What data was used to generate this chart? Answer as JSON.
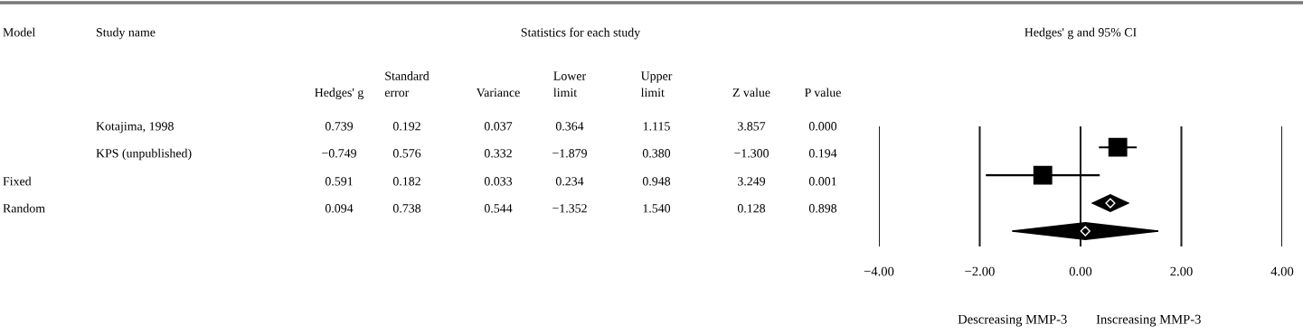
{
  "chart_data": [
    {
      "type": "other",
      "title": "Statistics for each study",
      "categories": [
        "Model",
        "Study name",
        "Hedges' g",
        "Standard\nerror",
        "Variance",
        "Lower\nlimit",
        "Upper\nlimit",
        "Z value",
        "P value"
      ],
      "cell_labels": [
        [
          null,
          "Kotajima, 1998",
          "0.739",
          "0.192",
          "0.037",
          "0.364",
          "1.115",
          "3.857",
          "0.000"
        ],
        [
          null,
          "KPS (unpublished)",
          "−0.749",
          "0.576",
          "0.332",
          "−1.879",
          "0.380",
          "−1.300",
          "0.194"
        ],
        [
          "Fixed",
          null,
          "0.591",
          "0.182",
          "0.033",
          "0.234",
          "0.948",
          "3.249",
          "0.001"
        ],
        [
          "Random",
          null,
          "0.094",
          "0.738",
          "0.544",
          "−1.352",
          "1.540",
          "0.128",
          "0.898"
        ]
      ]
    },
    {
      "type": "scatter",
      "orientation": "horizontal",
      "title": "Hedges' g and 95% CI",
      "categories": [
        null,
        null,
        null,
        null
      ],
      "series": [
        {
          "marker": "square",
          "color": "#000000",
          "values": [
            0.739,
            -0.749,
            null,
            null
          ],
          "errors": [
            [
              0.364,
              1.115
            ],
            [
              -1.879,
              0.38
            ],
            null,
            null
          ]
        },
        {
          "marker": "diamond",
          "color": "#000000",
          "values": [
            null,
            null,
            0.591,
            0.094
          ],
          "errors": [
            null,
            null,
            [
              0.234,
              0.948
            ],
            [
              -1.352,
              1.54
            ]
          ]
        }
      ],
      "xlim": [
        -4,
        4
      ],
      "xticks": [
        {
          "value": -4,
          "label": "−4.00"
        },
        {
          "value": -2,
          "label": "−2.00"
        },
        {
          "value": 0,
          "label": "0.00"
        },
        {
          "value": 2,
          "label": "2.00"
        },
        {
          "value": 4,
          "label": "4.00"
        }
      ],
      "grid": "x",
      "tick_labels": "x",
      "annotations": [
        "Descreasing MMP-3",
        "Inscreasing MMP-3"
      ]
    }
  ]
}
